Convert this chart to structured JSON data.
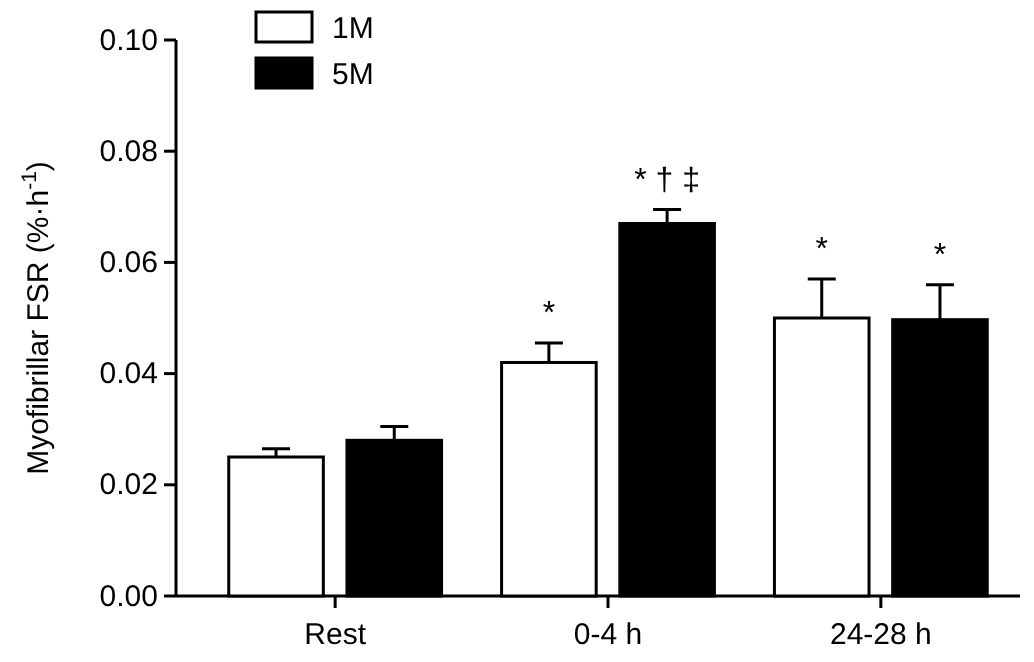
{
  "chart_data": {
    "type": "bar",
    "ylabel": "Myofibrillar FSR (%·h$^{-1}$)",
    "categories": [
      "Rest",
      "0-4 h",
      "24-28 h"
    ],
    "series": [
      {
        "name": "1M",
        "color": "#ffffff",
        "values": [
          0.025,
          0.042,
          0.05
        ],
        "errors": [
          [
            0.025,
            0.0265
          ],
          [
            0.042,
            0.0455
          ],
          [
            0.05,
            0.057
          ]
        ]
      },
      {
        "name": "5M",
        "color": "#000000",
        "values": [
          0.028,
          0.067,
          0.0497
        ],
        "errors": [
          [
            0.028,
            0.0305
          ],
          [
            0.067,
            0.0695
          ],
          [
            0.0497,
            0.056
          ]
        ]
      }
    ],
    "ylim": [
      0,
      0.1
    ],
    "yticks": [
      {
        "value": 0,
        "label": "0.00"
      },
      {
        "value": 0.02,
        "label": "0.02"
      },
      {
        "value": 0.04,
        "label": "0.04"
      },
      {
        "value": 0.06,
        "label": "0.06"
      },
      {
        "value": 0.08,
        "label": "0.08"
      },
      {
        "value": 0.1,
        "label": "0.10"
      }
    ],
    "legend": "top left",
    "annotations": [
      "*",
      "* † ‡",
      "*",
      "*"
    ]
  }
}
